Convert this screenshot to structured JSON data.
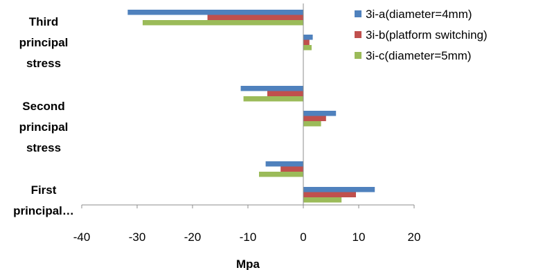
{
  "chart_data": {
    "type": "bar",
    "orientation": "horizontal",
    "categories": [
      [
        "Third",
        "principal",
        "stress"
      ],
      [
        "Second",
        "principal",
        "stress"
      ],
      [
        "First",
        "principal…"
      ]
    ],
    "series": [
      {
        "name": "3i-a(diameter=4mm)",
        "color": "#4F81BD",
        "values": [
          [
            -31.7,
            1.7
          ],
          [
            -11.3,
            5.9
          ],
          [
            -6.8,
            12.9
          ]
        ]
      },
      {
        "name": "3i-b(platform switching)",
        "color": "#C0504D",
        "values": [
          [
            -17.3,
            1.1
          ],
          [
            -6.5,
            4.1
          ],
          [
            -4.1,
            9.5
          ]
        ]
      },
      {
        "name": "3i-c(diameter=5mm)",
        "color": "#9BBB59",
        "values": [
          [
            -29.0,
            1.5
          ],
          [
            -10.8,
            3.2
          ],
          [
            -8.0,
            6.9
          ]
        ]
      }
    ],
    "xlim": [
      -40,
      20
    ],
    "xticks": [
      "-40",
      "-30",
      "-20",
      "-10",
      "0",
      "10",
      "20"
    ],
    "xlabel": "Mpa",
    "legend_position": "top-right"
  }
}
